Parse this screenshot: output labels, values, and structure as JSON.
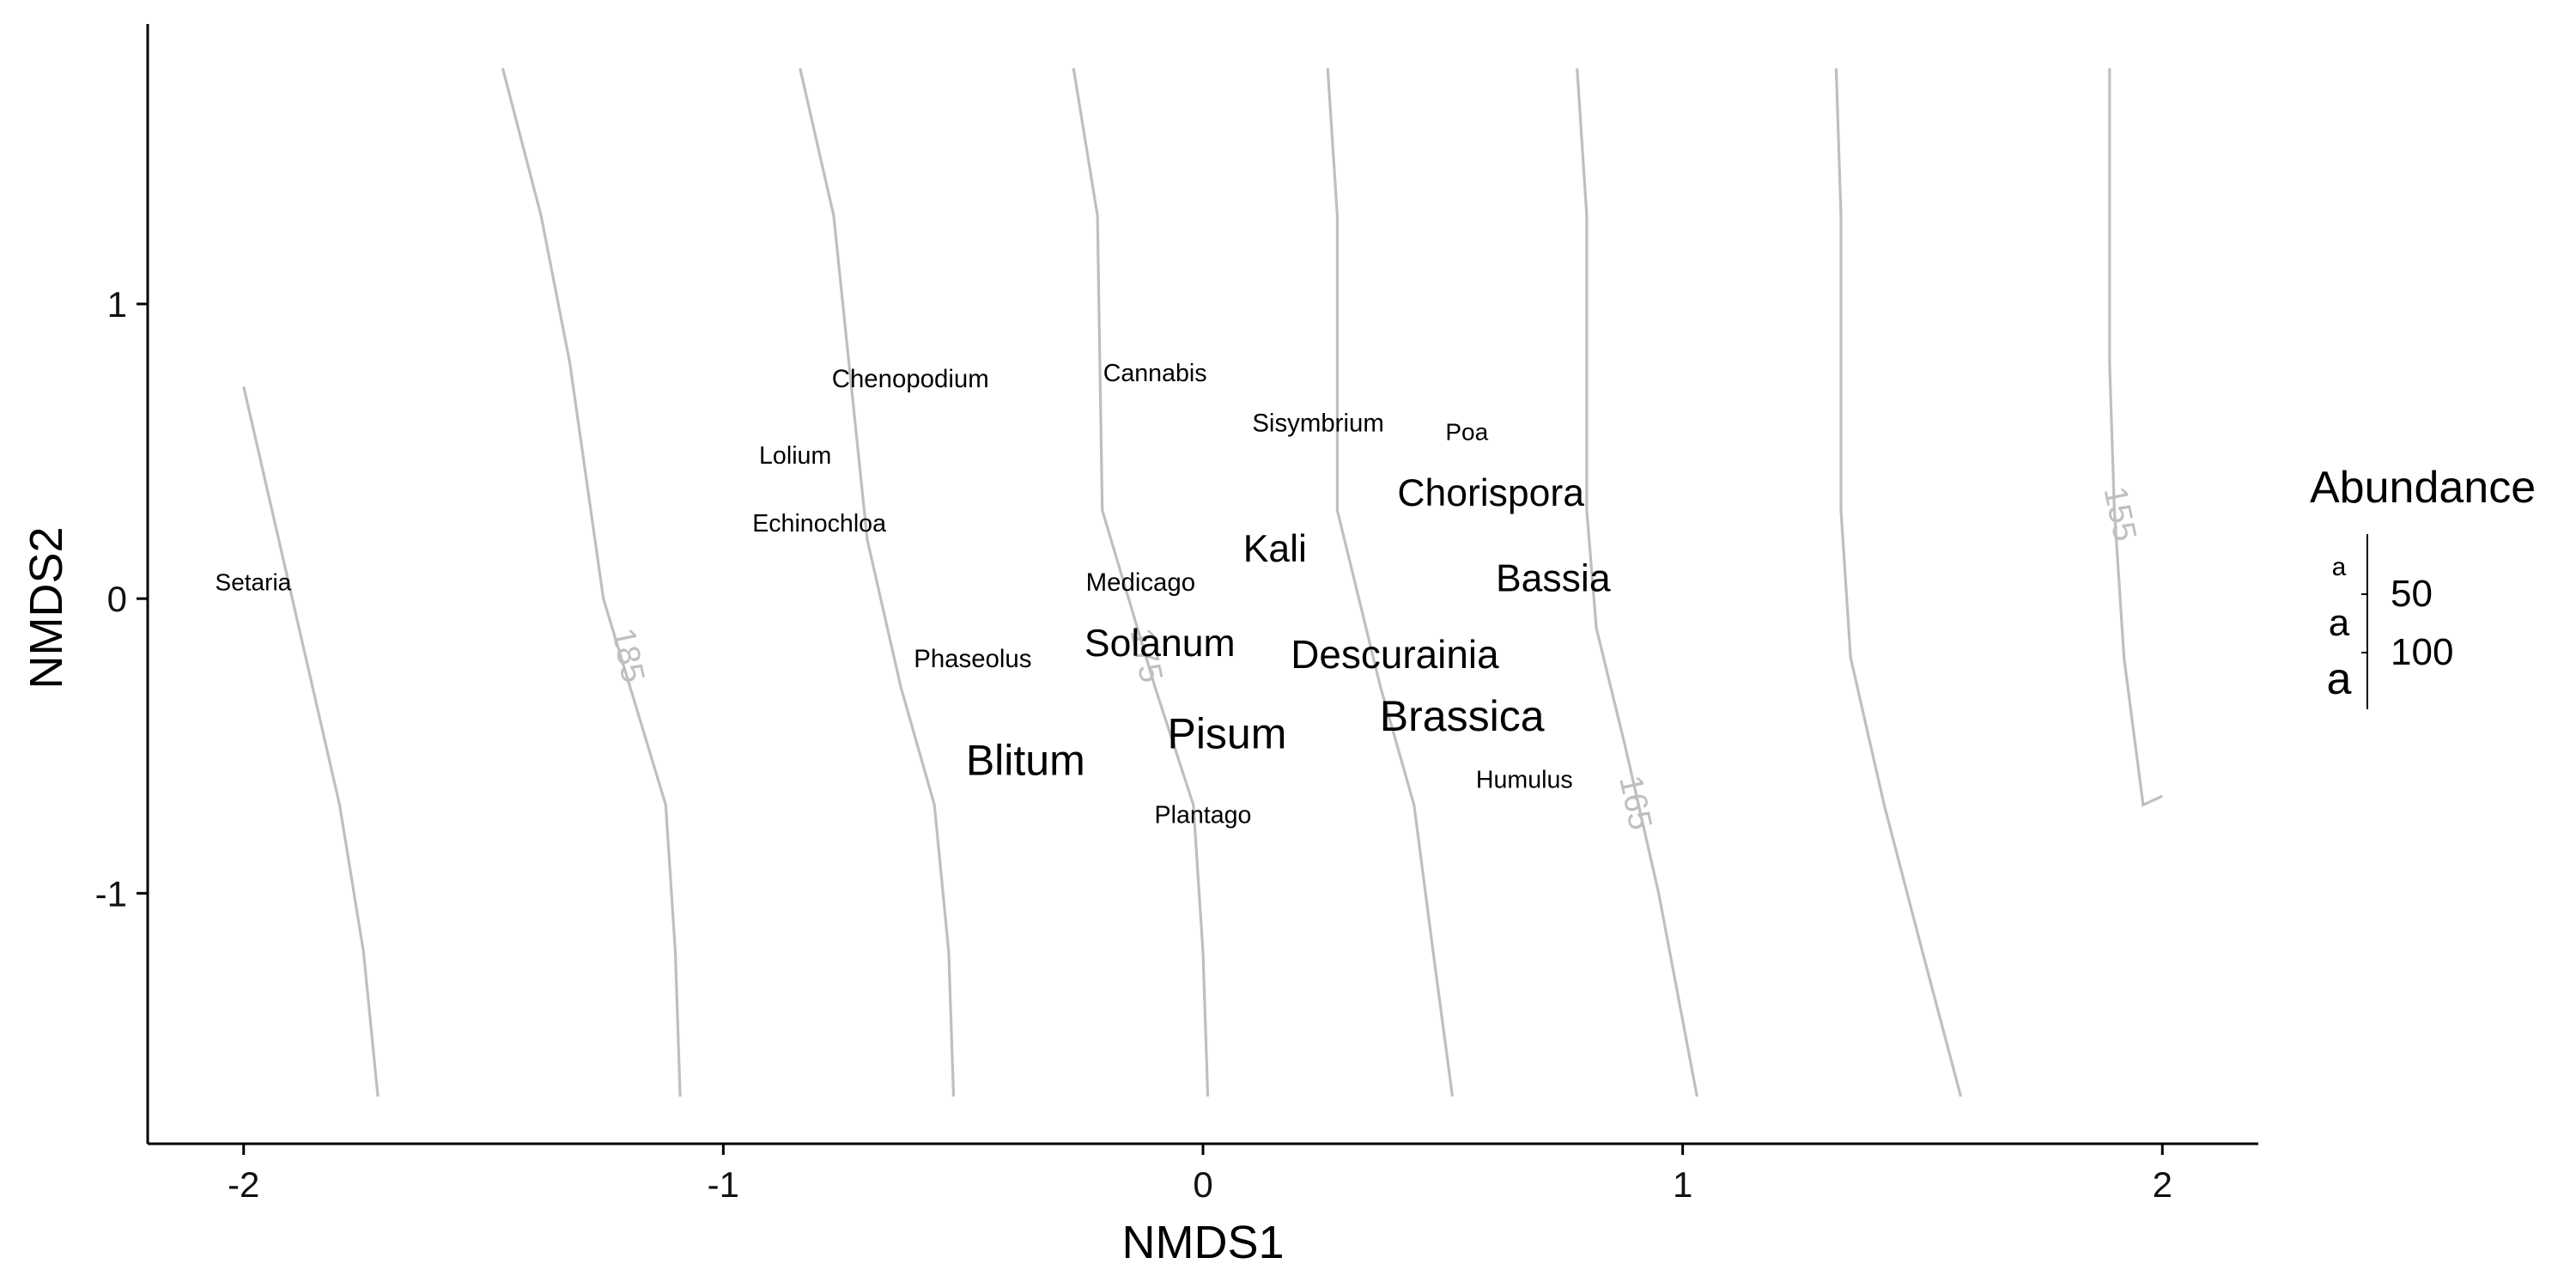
{
  "chart_data": {
    "type": "scatter",
    "xlabel": "NMDS1",
    "ylabel": "NMDS2",
    "xlim": [
      -2.2,
      2.2
    ],
    "ylim": [
      -1.85,
      1.95
    ],
    "xticks": [
      -2,
      -1,
      0,
      1,
      2
    ],
    "yticks": [
      -1,
      0,
      1
    ],
    "grid": false,
    "legend": {
      "title": "Abundance",
      "position": "right",
      "symbol": "a",
      "entries": [
        {
          "label": "50",
          "value": 50
        },
        {
          "label": "100",
          "value": 100
        }
      ]
    },
    "points": [
      {
        "label": "Setaria",
        "x": -1.98,
        "y": 0.05,
        "abundance": 20
      },
      {
        "label": "Chenopodium",
        "x": -0.61,
        "y": 0.74,
        "abundance": 25
      },
      {
        "label": "Lolium",
        "x": -0.85,
        "y": 0.48,
        "abundance": 22
      },
      {
        "label": "Echinochloa",
        "x": -0.8,
        "y": 0.25,
        "abundance": 22
      },
      {
        "label": "Cannabis",
        "x": -0.1,
        "y": 0.76,
        "abundance": 22
      },
      {
        "label": "Sisymbrium",
        "x": 0.24,
        "y": 0.59,
        "abundance": 25
      },
      {
        "label": "Poa",
        "x": 0.55,
        "y": 0.56,
        "abundance": 20
      },
      {
        "label": "Chorispora",
        "x": 0.6,
        "y": 0.35,
        "abundance": 80
      },
      {
        "label": "Kali",
        "x": 0.15,
        "y": 0.16,
        "abundance": 80
      },
      {
        "label": "Medicago",
        "x": -0.13,
        "y": 0.05,
        "abundance": 25
      },
      {
        "label": "Bassia",
        "x": 0.73,
        "y": 0.06,
        "abundance": 80
      },
      {
        "label": "Phaseolus",
        "x": -0.48,
        "y": -0.21,
        "abundance": 25
      },
      {
        "label": "Solanum",
        "x": -0.09,
        "y": -0.16,
        "abundance": 80
      },
      {
        "label": "Descurainia",
        "x": 0.4,
        "y": -0.2,
        "abundance": 85
      },
      {
        "label": "Brassica",
        "x": 0.54,
        "y": -0.41,
        "abundance": 100
      },
      {
        "label": "Pisum",
        "x": 0.05,
        "y": -0.47,
        "abundance": 100
      },
      {
        "label": "Blitum",
        "x": -0.37,
        "y": -0.56,
        "abundance": 100
      },
      {
        "label": "Humulus",
        "x": 0.67,
        "y": -0.62,
        "abundance": 22
      },
      {
        "label": "Plantago",
        "x": 0.0,
        "y": -0.74,
        "abundance": 22
      }
    ],
    "contours": [
      {
        "label": "",
        "points": [
          [
            -2.0,
            0.72
          ],
          [
            -1.8,
            -0.7
          ],
          [
            -1.75,
            -1.2
          ],
          [
            -1.72,
            -1.69
          ]
        ]
      },
      {
        "label": "185",
        "label_at": [
          -1.22,
          -0.2
        ],
        "points": [
          [
            -1.46,
            1.8
          ],
          [
            -1.38,
            1.3
          ],
          [
            -1.32,
            0.8
          ],
          [
            -1.25,
            0.0
          ],
          [
            -1.12,
            -0.7
          ],
          [
            -1.1,
            -1.2
          ],
          [
            -1.09,
            -1.69
          ]
        ]
      },
      {
        "label": "",
        "points": [
          [
            -0.84,
            1.8
          ],
          [
            -0.77,
            1.3
          ],
          [
            -0.7,
            0.2
          ],
          [
            -0.63,
            -0.3
          ],
          [
            -0.56,
            -0.7
          ],
          [
            -0.53,
            -1.2
          ],
          [
            -0.52,
            -1.69
          ]
        ]
      },
      {
        "label": "175",
        "label_at": [
          -0.14,
          -0.2
        ],
        "points": [
          [
            -0.27,
            1.8
          ],
          [
            -0.22,
            1.3
          ],
          [
            -0.21,
            0.3
          ],
          [
            -0.1,
            -0.3
          ],
          [
            -0.02,
            -0.7
          ],
          [
            0.0,
            -1.2
          ],
          [
            0.01,
            -1.69
          ]
        ]
      },
      {
        "label": "",
        "points": [
          [
            0.26,
            1.8
          ],
          [
            0.28,
            1.3
          ],
          [
            0.28,
            0.3
          ],
          [
            0.37,
            -0.3
          ],
          [
            0.44,
            -0.7
          ],
          [
            0.48,
            -1.2
          ],
          [
            0.52,
            -1.69
          ]
        ]
      },
      {
        "label": "165",
        "label_at": [
          0.88,
          -0.7
        ],
        "points": [
          [
            0.78,
            1.8
          ],
          [
            0.8,
            1.3
          ],
          [
            0.8,
            0.3
          ],
          [
            0.82,
            -0.1
          ],
          [
            0.88,
            -0.5
          ],
          [
            0.95,
            -1.0
          ],
          [
            1.03,
            -1.69
          ]
        ]
      },
      {
        "label": "",
        "points": [
          [
            1.32,
            1.8
          ],
          [
            1.33,
            1.3
          ],
          [
            1.33,
            0.3
          ],
          [
            1.35,
            -0.2
          ],
          [
            1.42,
            -0.7
          ],
          [
            1.5,
            -1.2
          ],
          [
            1.58,
            -1.69
          ]
        ]
      },
      {
        "label": "155",
        "label_at": [
          1.89,
          0.28
        ],
        "points": [
          [
            1.89,
            1.8
          ],
          [
            1.89,
            1.3
          ],
          [
            1.89,
            0.8
          ],
          [
            1.9,
            0.3
          ],
          [
            1.92,
            -0.2
          ],
          [
            1.96,
            -0.7
          ],
          [
            2.0,
            -0.67
          ]
        ]
      }
    ]
  }
}
